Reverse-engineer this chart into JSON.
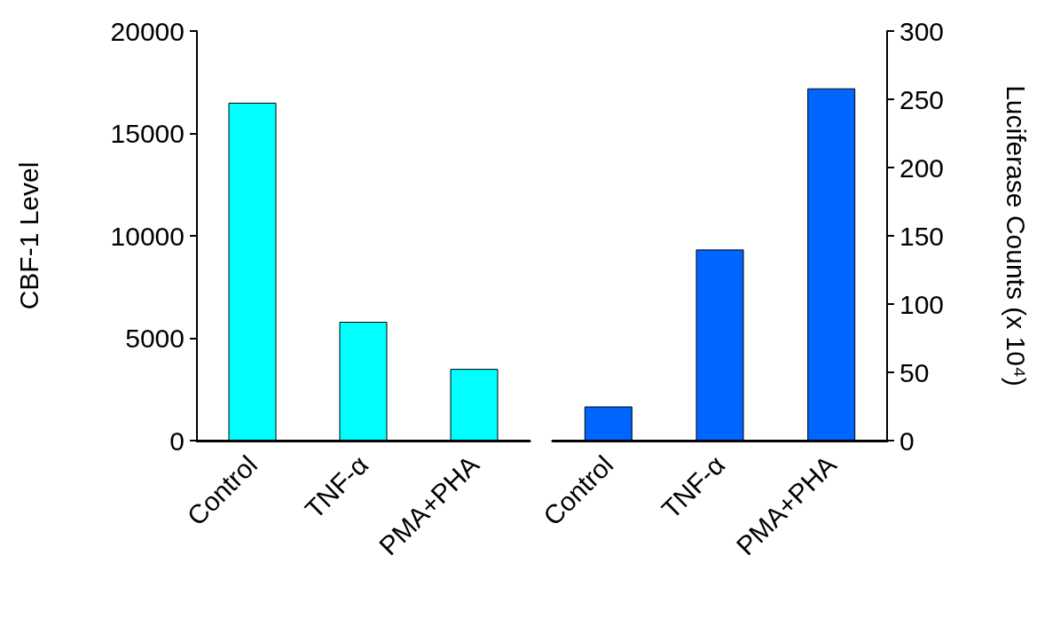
{
  "chart_data": [
    {
      "type": "bar",
      "ylabel": "CBF-1 Level",
      "categories": [
        "Control",
        "TNF-α",
        "PMA+PHA"
      ],
      "values": [
        16500,
        5800,
        3500
      ],
      "color": "#00ffff",
      "ylim": [
        0,
        20000
      ],
      "yticks": [
        0,
        5000,
        10000,
        15000,
        20000
      ],
      "grid": false
    },
    {
      "type": "bar",
      "y2label": "Luciferase Counts (x 10⁴)",
      "categories": [
        "Control",
        "TNF-α",
        "PMA+PHA"
      ],
      "series": [
        {
          "values": [
            25,
            140,
            258
          ],
          "color": "#0066ff",
          "axis": "y2"
        }
      ],
      "y2lim": [
        0,
        300
      ],
      "y2ticks": [
        0,
        50,
        100,
        150,
        200,
        250,
        300
      ],
      "grid": false
    }
  ]
}
